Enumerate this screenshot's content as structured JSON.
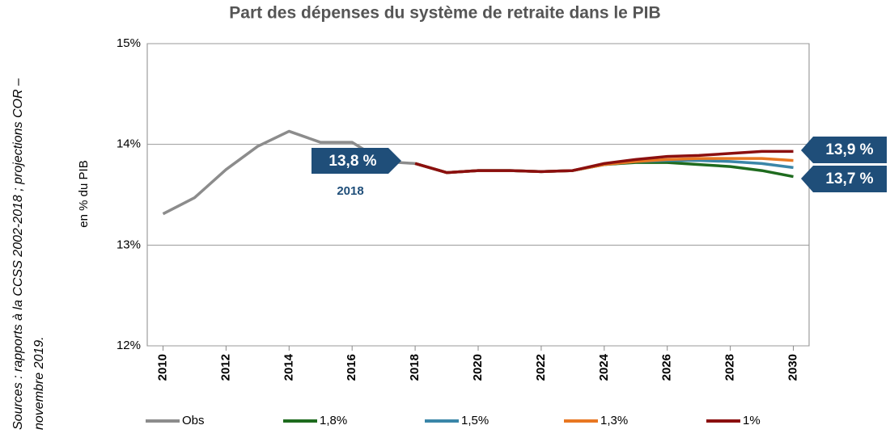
{
  "chart_data": {
    "type": "line",
    "title": "Part des dépenses du système de retraite dans le PIB",
    "y_label": "en % du PIB",
    "source": "Sources : rapports à la CCSS 2002-2018 ; projections COR – novembre 2019.",
    "x": [
      2010,
      2011,
      2012,
      2013,
      2014,
      2015,
      2016,
      2017,
      2018,
      2019,
      2020,
      2021,
      2022,
      2023,
      2024,
      2025,
      2026,
      2027,
      2028,
      2029,
      2030
    ],
    "xlim": [
      2009.5,
      2030.5
    ],
    "xticks": [
      2010,
      2012,
      2014,
      2016,
      2018,
      2020,
      2022,
      2024,
      2026,
      2028,
      2030
    ],
    "ylim": [
      12,
      15
    ],
    "yticks": [
      {
        "value": 12,
        "label": "12%"
      },
      {
        "value": 13,
        "label": "13%"
      },
      {
        "value": 14,
        "label": "14%"
      },
      {
        "value": 15,
        "label": "15%"
      }
    ],
    "grid": true,
    "series": [
      {
        "name": "Obs",
        "color": "#8c8c8c",
        "values": [
          13.31,
          13.47,
          13.75,
          13.98,
          14.13,
          14.02,
          14.02,
          13.83,
          13.81,
          null,
          null,
          null,
          null,
          null,
          null,
          null,
          null,
          null,
          null,
          null,
          null
        ]
      },
      {
        "name": "1,8%",
        "color": "#1e6b1e",
        "values": [
          null,
          null,
          null,
          null,
          null,
          null,
          null,
          null,
          13.81,
          13.72,
          13.74,
          13.74,
          13.73,
          13.74,
          13.8,
          13.82,
          13.82,
          13.8,
          13.78,
          13.74,
          13.68
        ]
      },
      {
        "name": "1,5%",
        "color": "#3a86a8",
        "values": [
          null,
          null,
          null,
          null,
          null,
          null,
          null,
          null,
          13.81,
          13.72,
          13.74,
          13.74,
          13.73,
          13.74,
          13.8,
          13.83,
          13.84,
          13.84,
          13.83,
          13.81,
          13.77
        ]
      },
      {
        "name": "1,3%",
        "color": "#e87722",
        "values": [
          null,
          null,
          null,
          null,
          null,
          null,
          null,
          null,
          13.81,
          13.72,
          13.74,
          13.74,
          13.73,
          13.74,
          13.8,
          13.83,
          13.85,
          13.86,
          13.86,
          13.86,
          13.84
        ]
      },
      {
        "name": "1%",
        "color": "#8b0f0f",
        "values": [
          null,
          null,
          null,
          null,
          null,
          null,
          null,
          null,
          13.81,
          13.72,
          13.74,
          13.74,
          13.73,
          13.74,
          13.81,
          13.85,
          13.88,
          13.89,
          13.91,
          13.93,
          13.93
        ]
      }
    ],
    "annotations": [
      "13,8 %",
      "2018",
      "13,9 %",
      "13,7 %"
    ]
  }
}
